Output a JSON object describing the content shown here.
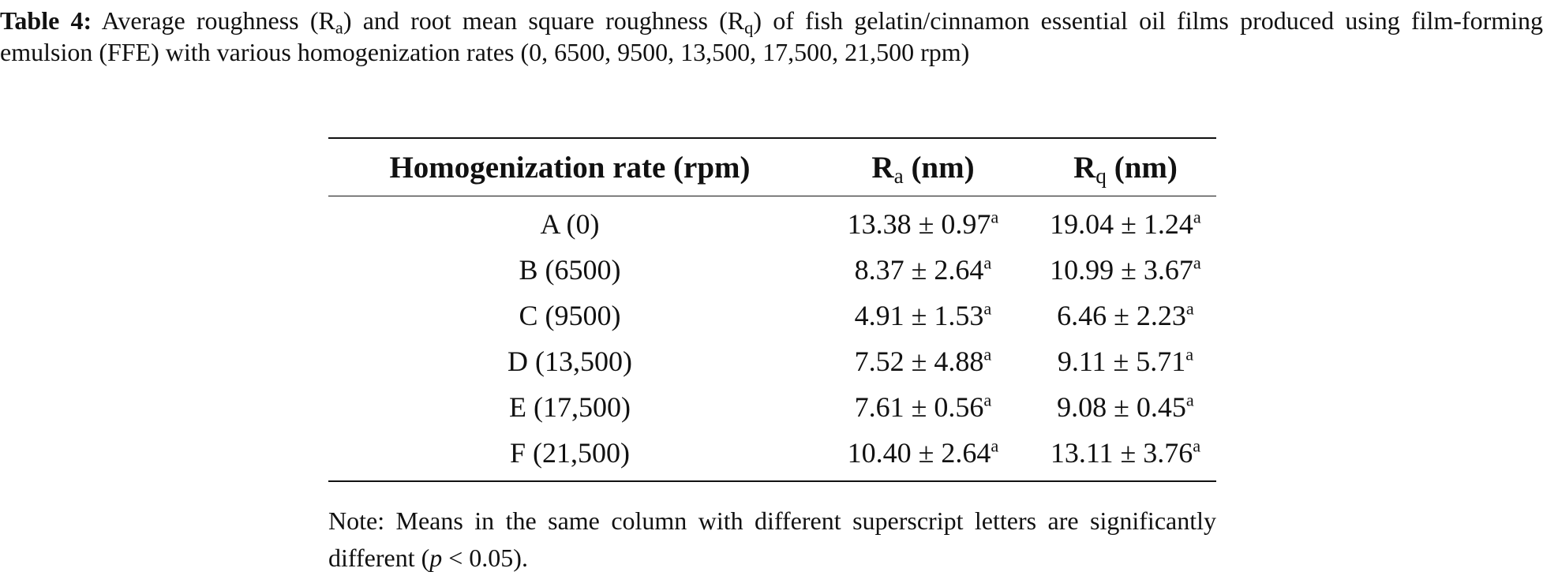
{
  "caption": {
    "label": "Table 4:",
    "text_1": " Average roughness (R",
    "sub_a": "a",
    "text_2": ") and root mean square roughness (R",
    "sub_q": "q",
    "text_3": ") of fish gelatin/cinnamon essential oil films produced using film-forming emulsion (FFE) with various homogenization rates (0, 6500, 9500, 13,500, 17,500, 21,500 rpm)"
  },
  "table": {
    "headers": {
      "rate": "Homogenization rate (rpm)",
      "ra_main": "R",
      "ra_sub": "a",
      "ra_unit": " (nm)",
      "rq_main": "R",
      "rq_sub": "q",
      "rq_unit": " (nm)"
    },
    "rows": [
      {
        "rate": "A (0)",
        "ra": "13.38 ± 0.97",
        "ra_sup": "a",
        "rq": "19.04 ± 1.24",
        "rq_sup": "a"
      },
      {
        "rate": "B (6500)",
        "ra": "8.37 ± 2.64",
        "ra_sup": "a",
        "rq": "10.99 ± 3.67",
        "rq_sup": "a"
      },
      {
        "rate": "C (9500)",
        "ra": "4.91 ± 1.53",
        "ra_sup": "a",
        "rq": "6.46 ± 2.23",
        "rq_sup": "a"
      },
      {
        "rate": "D (13,500)",
        "ra": "7.52 ± 4.88",
        "ra_sup": "a",
        "rq": "9.11 ± 5.71",
        "rq_sup": "a"
      },
      {
        "rate": "E (17,500)",
        "ra": "7.61 ± 0.56",
        "ra_sup": "a",
        "rq": "9.08 ± 0.45",
        "rq_sup": "a"
      },
      {
        "rate": "F (21,500)",
        "ra": "10.40 ± 2.64",
        "ra_sup": "a",
        "rq": "13.11 ± 3.76",
        "rq_sup": "a"
      }
    ]
  },
  "note": {
    "text_1": "Note: Means in the same column with different superscript letters are significantly different (",
    "p": "p",
    "text_2": " < 0.05)."
  }
}
